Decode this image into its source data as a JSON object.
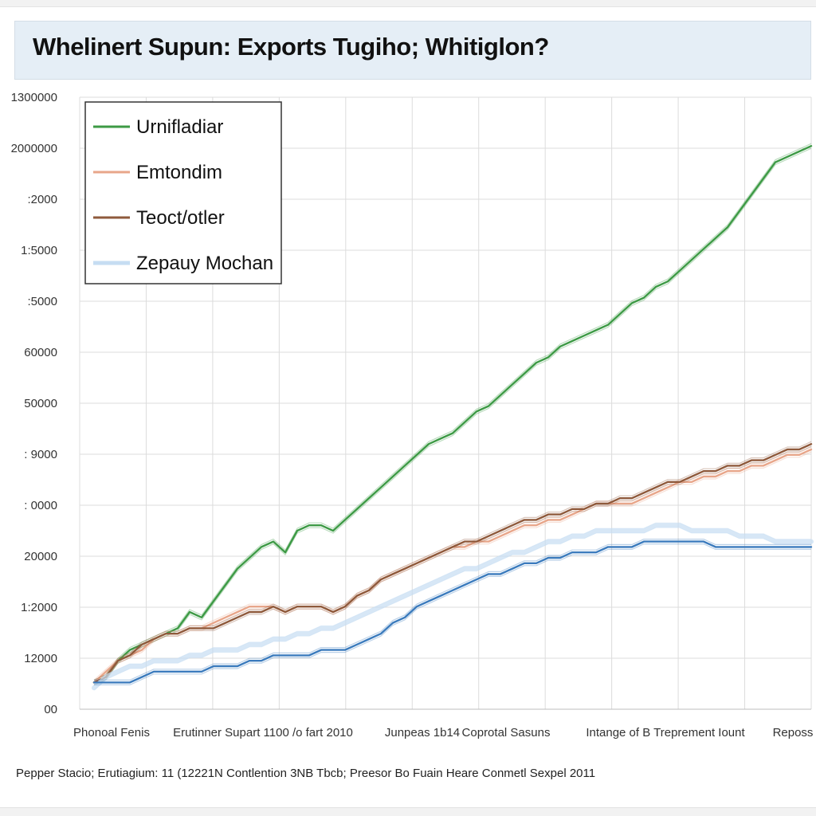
{
  "title": "Whelinert Supun: Exports Tugiho; Whitiglon?",
  "footer": "Pepper Stacio; Erutiagium: 11 (12221N Contlention 3NB Tbcb; Preesor Bo Fuain Heare Conmetl Sexpel 2011",
  "chart_data": {
    "type": "line",
    "title": "Whelinert Supun: Exports Tugiho; Whitiglon?",
    "xlabel": "",
    "ylabel": "",
    "grid": true,
    "legend_position": "top-left",
    "x": [
      0,
      1,
      2,
      3,
      4,
      5,
      6,
      7,
      8,
      9,
      10,
      11,
      12,
      13,
      14,
      15,
      16,
      17,
      18,
      19,
      20,
      21,
      22,
      23,
      24,
      25,
      26,
      27,
      28,
      29,
      30,
      31,
      32,
      33,
      34,
      35,
      36,
      37,
      38,
      39,
      40,
      41,
      42,
      43,
      44,
      45,
      46,
      47,
      48,
      49,
      50,
      51,
      52,
      53,
      54,
      55,
      56,
      57,
      58,
      59,
      60
    ],
    "x_tick_labels": [
      "Phonoal Fenis",
      "Erutinner Supart 1100 /o fart 2010",
      "Junpeas 1b14",
      "Coprotal Sasuns",
      "Intange of B Treprement Iount",
      "Reposs"
    ],
    "y_tick_labels": [
      "1300000",
      "2000000",
      ":2000",
      "1:5000",
      ":5000",
      "60000",
      "50000",
      ": 9000",
      ": 0000",
      "20000",
      "1:2000",
      "12000",
      "00"
    ],
    "series": [
      {
        "name": "Urnifladiar",
        "color": "#3d9a45",
        "values": [
          2,
          3,
          6,
          8,
          9,
          10,
          11,
          12,
          15,
          14,
          17,
          20,
          23,
          25,
          27,
          28,
          26,
          30,
          31,
          31,
          30,
          32,
          34,
          36,
          38,
          40,
          42,
          44,
          46,
          47,
          48,
          50,
          52,
          53,
          55,
          57,
          59,
          61,
          62,
          64,
          65,
          66,
          67,
          68,
          70,
          72,
          73,
          75,
          76,
          78,
          80,
          82,
          84,
          86,
          89,
          92,
          95,
          98,
          99,
          100,
          101
        ]
      },
      {
        "name": "Emtondim",
        "color": "#e8a68a",
        "values": [
          2,
          4,
          6,
          7,
          8,
          10,
          11,
          11,
          12,
          12,
          13,
          14,
          15,
          16,
          16,
          16,
          15,
          16,
          16,
          16,
          15,
          16,
          18,
          19,
          21,
          22,
          23,
          24,
          25,
          26,
          27,
          27,
          28,
          28,
          29,
          30,
          31,
          31,
          32,
          32,
          33,
          34,
          35,
          35,
          35,
          35,
          36,
          37,
          38,
          39,
          39,
          40,
          40,
          41,
          41,
          42,
          42,
          43,
          44,
          44,
          45
        ]
      },
      {
        "name": "Teoct/otler",
        "color": "#8f5a3c",
        "values": [
          2,
          3,
          6,
          7,
          9,
          10,
          11,
          11,
          12,
          12,
          12,
          13,
          14,
          15,
          15,
          16,
          15,
          16,
          16,
          16,
          15,
          16,
          18,
          19,
          21,
          22,
          23,
          24,
          25,
          26,
          27,
          28,
          28,
          29,
          30,
          31,
          32,
          32,
          33,
          33,
          34,
          34,
          35,
          35,
          36,
          36,
          37,
          38,
          39,
          39,
          40,
          41,
          41,
          42,
          42,
          43,
          43,
          44,
          45,
          45,
          46
        ]
      },
      {
        "name": "Zepauy Mochan",
        "color": "#c6ddf2",
        "values": [
          1,
          3,
          4,
          5,
          5,
          6,
          6,
          6,
          7,
          7,
          8,
          8,
          8,
          9,
          9,
          10,
          10,
          11,
          11,
          12,
          12,
          13,
          14,
          15,
          16,
          17,
          18,
          19,
          20,
          21,
          22,
          23,
          23,
          24,
          25,
          26,
          26,
          27,
          28,
          28,
          29,
          29,
          30,
          30,
          30,
          30,
          30,
          31,
          31,
          31,
          30,
          30,
          30,
          30,
          29,
          29,
          29,
          28,
          28,
          28,
          28
        ]
      },
      {
        "name": "",
        "color": "#3b7bbd",
        "values": [
          2,
          2,
          2,
          2,
          3,
          4,
          4,
          4,
          4,
          4,
          5,
          5,
          5,
          6,
          6,
          7,
          7,
          7,
          7,
          8,
          8,
          8,
          9,
          10,
          11,
          13,
          14,
          16,
          17,
          18,
          19,
          20,
          21,
          22,
          22,
          23,
          24,
          24,
          25,
          25,
          26,
          26,
          26,
          27,
          27,
          27,
          28,
          28,
          28,
          28,
          28,
          28,
          27,
          27,
          27,
          27,
          27,
          27,
          27,
          27,
          27
        ]
      }
    ],
    "ylim": [
      0,
      110
    ]
  },
  "colors": {
    "title_bg": "#e5eef6",
    "grid": "#dcdcdc"
  }
}
